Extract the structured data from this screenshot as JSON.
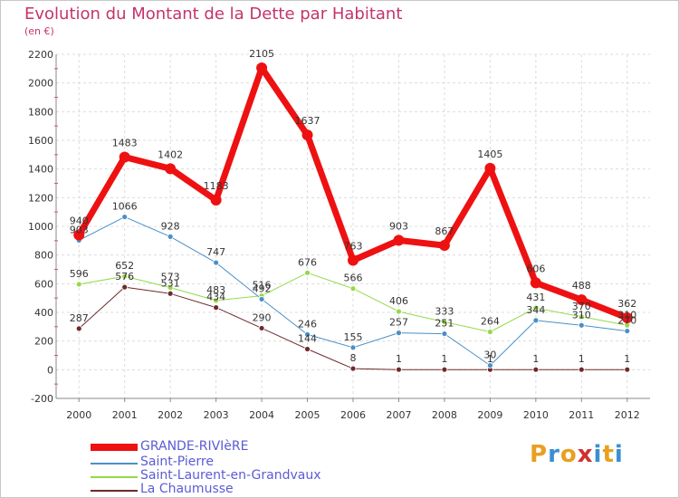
{
  "title": "Evolution du Montant de la Dette par Habitant",
  "subtitle": "(en €)",
  "logo": {
    "text": "Proxiti",
    "colors": [
      "#e8a020",
      "#3a8fd0",
      "#e8a020",
      "#d03030",
      "#3a8fd0",
      "#e8a020",
      "#3a8fd0"
    ]
  },
  "chart_data": {
    "type": "line",
    "x": [
      "2000",
      "2001",
      "2002",
      "2003",
      "2004",
      "2005",
      "2006",
      "2007",
      "2008",
      "2009",
      "2010",
      "2011",
      "2012"
    ],
    "ylim": [
      -200,
      2200
    ],
    "yticks": [
      "-200",
      "0",
      "200",
      "400",
      "600",
      "800",
      "1000",
      "1200",
      "1400",
      "1600",
      "1800",
      "2000",
      "2200"
    ],
    "grid": true,
    "legend_position": "bottom-left",
    "series": [
      {
        "name": "GRANDE-RIVIèRE",
        "color": "#ee1111",
        "width": 7,
        "values": [
          940,
          1483,
          1402,
          1183,
          2105,
          1637,
          763,
          903,
          867,
          1405,
          606,
          488,
          362
        ],
        "labels": [
          "940",
          "1483",
          "1402",
          "1183",
          "2105",
          "1637",
          "763",
          "903",
          "867",
          "1405",
          "606",
          "488",
          "362"
        ]
      },
      {
        "name": "Saint-Pierre",
        "color": "#4a8fc6",
        "width": 1,
        "values": [
          903,
          1066,
          928,
          747,
          492,
          246,
          155,
          257,
          251,
          30,
          344,
          310,
          270
        ],
        "labels": [
          "903",
          "1066",
          "928",
          "747",
          "492",
          "246",
          "155",
          "257",
          "251",
          "30",
          "344",
          "310",
          "270"
        ]
      },
      {
        "name": "Saint-Laurent-en-Grandvaux",
        "color": "#94d94a",
        "width": 1,
        "values": [
          596,
          652,
          573,
          483,
          516,
          676,
          566,
          406,
          333,
          264,
          431,
          370,
          310
        ],
        "labels": [
          "596",
          "652",
          "573",
          "483",
          "516",
          "676",
          "566",
          "406",
          "333",
          "264",
          "431",
          "370",
          "310"
        ]
      },
      {
        "name": "La Chaumusse",
        "color": "#6e2a2a",
        "width": 1,
        "values": [
          287,
          576,
          531,
          434,
          290,
          144,
          8,
          1,
          1,
          1,
          1,
          1,
          1
        ],
        "labels": [
          "287",
          "576",
          "531",
          "434",
          "290",
          "144",
          "8",
          "1",
          "1",
          "1",
          "1",
          "1",
          "1"
        ]
      }
    ]
  }
}
